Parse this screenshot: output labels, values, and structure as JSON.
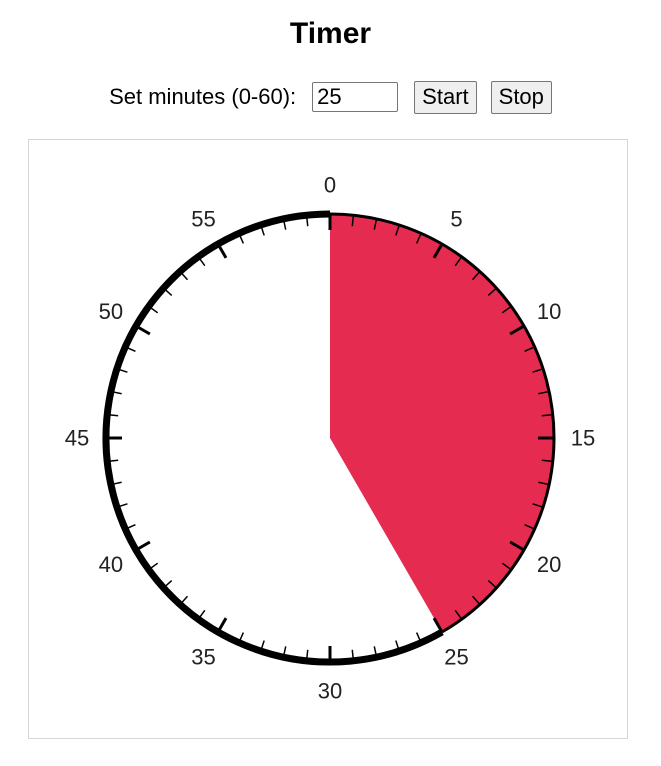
{
  "title": "Timer",
  "controls": {
    "label": "Set minutes (0-60):",
    "minutes_value": "25",
    "start_label": "Start",
    "stop_label": "Stop"
  },
  "dial": {
    "set_minutes": 25,
    "total_minutes": 60,
    "labels": [
      "0",
      "5",
      "10",
      "15",
      "20",
      "25",
      "30",
      "35",
      "40",
      "45",
      "50",
      "55"
    ],
    "fill_color": "#e52b50",
    "ring_color": "#000000"
  }
}
